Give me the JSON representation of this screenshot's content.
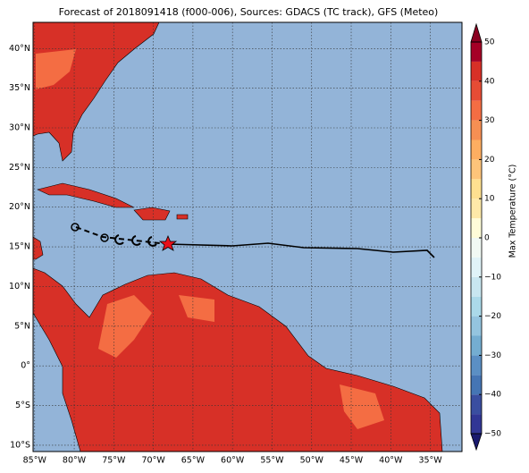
{
  "chart_data": {
    "type": "map",
    "title": "Forecast of 2018091418 (f000-006), Sources: GDACS (TC track), GFS (Meteo)",
    "xlim": [
      -85.2,
      -31
    ],
    "ylim": [
      -10.8,
      43.3
    ],
    "xticks": [
      {
        "value": -85,
        "label": "85°W"
      },
      {
        "value": -80,
        "label": "80°W"
      },
      {
        "value": -75,
        "label": "75°W"
      },
      {
        "value": -70,
        "label": "70°W"
      },
      {
        "value": -65,
        "label": "65°W"
      },
      {
        "value": -60,
        "label": "60°W"
      },
      {
        "value": -55,
        "label": "55°W"
      },
      {
        "value": -50,
        "label": "50°W"
      },
      {
        "value": -45,
        "label": "45°W"
      },
      {
        "value": -40,
        "label": "40°W"
      },
      {
        "value": -35,
        "label": "35°W"
      }
    ],
    "yticks": [
      {
        "value": 40,
        "label": "40°N"
      },
      {
        "value": 35,
        "label": "35°N"
      },
      {
        "value": 30,
        "label": "30°N"
      },
      {
        "value": 25,
        "label": "25°N"
      },
      {
        "value": 20,
        "label": "20°N"
      },
      {
        "value": 15,
        "label": "15°N"
      },
      {
        "value": 10,
        "label": "10°N"
      },
      {
        "value": 5,
        "label": "5°N"
      },
      {
        "value": 0,
        "label": "0°"
      },
      {
        "value": -5,
        "label": "5°S"
      },
      {
        "value": -10,
        "label": "10°S"
      }
    ],
    "colorbar": {
      "label": "Max Temperature (°C)",
      "lim": [
        -50,
        50
      ],
      "ticks": [
        50,
        40,
        30,
        20,
        10,
        0,
        {
          "value": -10,
          "label": "−10"
        },
        {
          "value": -20,
          "label": "−20"
        },
        {
          "value": -30,
          "label": "−30"
        },
        {
          "value": -40,
          "label": "−40"
        },
        {
          "value": -50,
          "label": "−50"
        }
      ]
    }
  }
}
